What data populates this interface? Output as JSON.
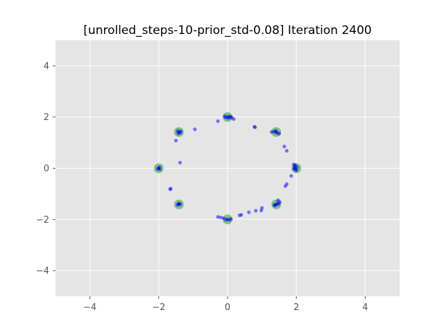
{
  "chart_data": {
    "type": "scatter",
    "title": "[unrolled_steps-10-prior_std-0.08] Iteration 2400",
    "xlabel": "",
    "ylabel": "",
    "xlim": [
      -5,
      5
    ],
    "ylim": [
      -5,
      5
    ],
    "xticks": [
      -4,
      -2,
      0,
      2,
      4
    ],
    "yticks": [
      -4,
      -2,
      0,
      2,
      4
    ],
    "xtick_labels": [
      "−4",
      "−2",
      "0",
      "2",
      "4"
    ],
    "ytick_labels": [
      "−4",
      "−2",
      "0",
      "2",
      "4"
    ],
    "grid": true,
    "colors": {
      "background": "#e5e5e5",
      "grid": "#ffffff",
      "real": "#2ca02c",
      "generated": "#0000ff"
    },
    "series": [
      {
        "role": "real",
        "points": [
          [
            2,
            0
          ],
          [
            1.414,
            1.414
          ],
          [
            0,
            2
          ],
          [
            -1.414,
            1.414
          ],
          [
            -2,
            0
          ],
          [
            -1.414,
            -1.414
          ],
          [
            0,
            -2
          ],
          [
            1.414,
            -1.414
          ]
        ]
      },
      {
        "role": "generated",
        "points": [
          [
            0.0,
            2.0
          ],
          [
            0.05,
            2.02
          ],
          [
            -0.05,
            1.98
          ],
          [
            0.1,
            2.01
          ],
          [
            -0.08,
            2.03
          ],
          [
            0.03,
            1.96
          ],
          [
            0.12,
            1.97
          ],
          [
            0.18,
            1.92
          ],
          [
            -0.28,
            1.84
          ],
          [
            -1.41,
            1.42
          ],
          [
            -1.38,
            1.38
          ],
          [
            -1.45,
            1.45
          ],
          [
            -1.36,
            1.44
          ],
          [
            -1.43,
            1.36
          ],
          [
            -0.95,
            1.52
          ],
          [
            -1.5,
            1.08
          ],
          [
            -1.38,
            0.22
          ],
          [
            1.41,
            1.41
          ],
          [
            1.45,
            1.38
          ],
          [
            1.36,
            1.43
          ],
          [
            1.5,
            1.35
          ],
          [
            1.28,
            1.42
          ],
          [
            1.4,
            1.46
          ],
          [
            0.8,
            1.6
          ],
          [
            0.78,
            1.62
          ],
          [
            1.65,
            0.85
          ],
          [
            1.72,
            0.68
          ],
          [
            1.95,
            0.02
          ],
          [
            1.98,
            -0.05
          ],
          [
            2.02,
            0.03
          ],
          [
            1.93,
            -0.02
          ],
          [
            1.96,
            0.08
          ],
          [
            1.92,
            0.15
          ],
          [
            2.0,
            -0.08
          ],
          [
            1.97,
            0.12
          ],
          [
            1.85,
            -0.3
          ],
          [
            1.72,
            -0.62
          ],
          [
            1.68,
            -0.7
          ],
          [
            1.41,
            -1.41
          ],
          [
            1.45,
            -1.38
          ],
          [
            1.36,
            -1.44
          ],
          [
            1.38,
            -1.45
          ],
          [
            1.48,
            -1.4
          ],
          [
            1.47,
            -1.25
          ],
          [
            1.52,
            -1.32
          ],
          [
            1.0,
            -1.55
          ],
          [
            0.98,
            -1.65
          ],
          [
            0.82,
            -1.66
          ],
          [
            0.62,
            -1.72
          ],
          [
            0.4,
            -1.82
          ],
          [
            0.35,
            -1.84
          ],
          [
            0.0,
            -2.0
          ],
          [
            0.05,
            -2.02
          ],
          [
            -0.05,
            -2.01
          ],
          [
            0.1,
            -1.98
          ],
          [
            -0.12,
            -1.95
          ],
          [
            -0.2,
            -1.92
          ],
          [
            -0.28,
            -1.9
          ],
          [
            -1.41,
            -1.41
          ],
          [
            -1.45,
            -1.43
          ],
          [
            -1.38,
            -1.4
          ],
          [
            -1.42,
            -1.38
          ],
          [
            -2.0,
            0.0
          ],
          [
            -1.98,
            0.04
          ],
          [
            -2.03,
            -0.02
          ],
          [
            -1.97,
            -0.04
          ],
          [
            -1.65,
            -0.8
          ],
          [
            -1.67,
            -0.82
          ]
        ]
      }
    ]
  }
}
